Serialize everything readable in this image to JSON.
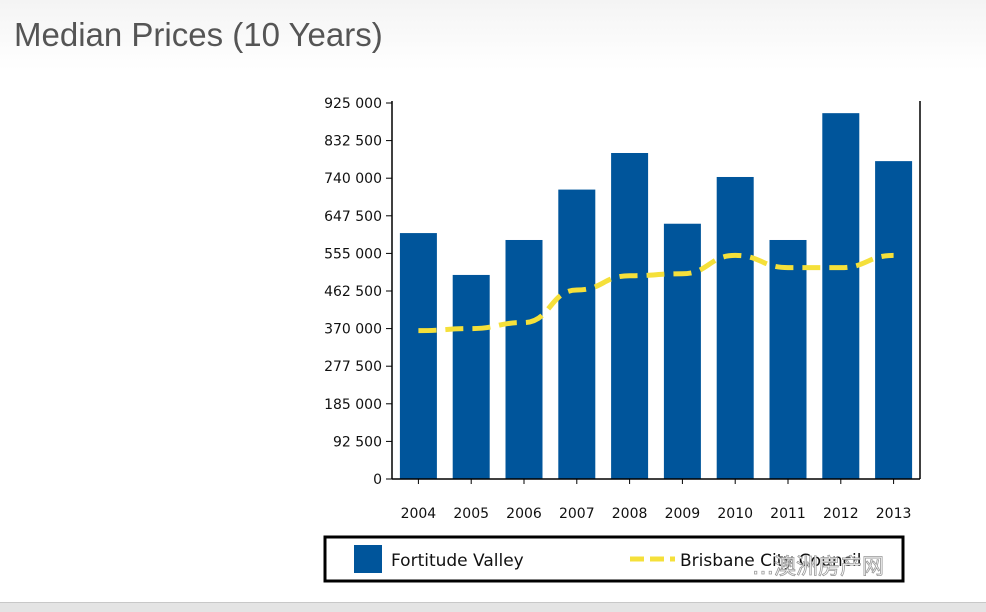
{
  "page": {
    "title": "Median Prices (10 Years)",
    "watermark": "…澳洲房产网"
  },
  "colors": {
    "bar": "#00559b",
    "line": "#f5e03a",
    "axis": "#000000"
  },
  "chart_data": {
    "type": "bar",
    "title": "Median Prices (10 Years)",
    "xlabel": "",
    "ylabel": "",
    "categories": [
      "2004",
      "2005",
      "2006",
      "2007",
      "2008",
      "2009",
      "2010",
      "2011",
      "2012",
      "2013"
    ],
    "ylim": [
      0,
      925000
    ],
    "yticks": [
      0,
      92500,
      185000,
      277500,
      370000,
      462500,
      555000,
      647500,
      740000,
      832500,
      925000
    ],
    "ytick_labels": [
      "0",
      "92 500",
      "185 000",
      "277 500",
      "370 000",
      "462 500",
      "555 000",
      "647 500",
      "740 000",
      "832 500",
      "925 000"
    ],
    "grid": false,
    "legend_position": "bottom",
    "series": [
      {
        "name": "Fortitude Valley",
        "kind": "bar",
        "values": [
          605000,
          502000,
          588000,
          712000,
          802000,
          628000,
          743000,
          588000,
          900000,
          782000
        ]
      },
      {
        "name": "Brisbane City Council",
        "kind": "line",
        "style": "dashed",
        "values": [
          365000,
          370000,
          385000,
          465000,
          500000,
          505000,
          550000,
          520000,
          520000,
          550000
        ]
      }
    ]
  }
}
